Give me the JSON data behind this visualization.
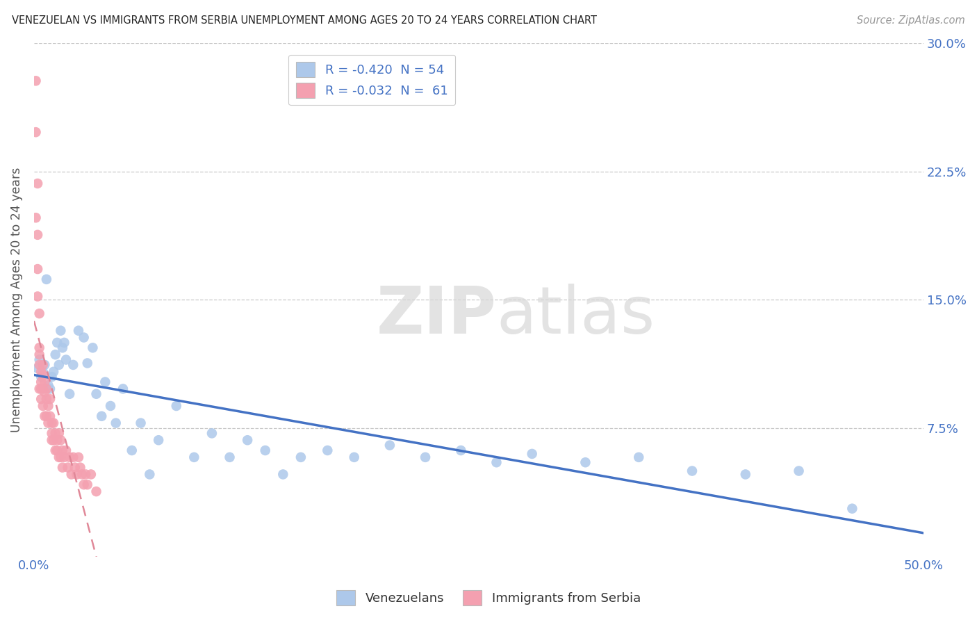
{
  "title": "VENEZUELAN VS IMMIGRANTS FROM SERBIA UNEMPLOYMENT AMONG AGES 20 TO 24 YEARS CORRELATION CHART",
  "source": "Source: ZipAtlas.com",
  "ylabel": "Unemployment Among Ages 20 to 24 years",
  "xlim": [
    0,
    0.5
  ],
  "ylim": [
    0,
    0.3
  ],
  "color_blue": "#adc8ea",
  "color_pink": "#f4a0b0",
  "line_blue": "#4472c4",
  "line_pink": "#e08898",
  "venezuelan_x": [
    0.002,
    0.003,
    0.004,
    0.005,
    0.006,
    0.007,
    0.008,
    0.009,
    0.01,
    0.011,
    0.012,
    0.013,
    0.014,
    0.015,
    0.016,
    0.017,
    0.018,
    0.02,
    0.022,
    0.025,
    0.028,
    0.03,
    0.033,
    0.035,
    0.038,
    0.04,
    0.043,
    0.046,
    0.05,
    0.055,
    0.06,
    0.065,
    0.07,
    0.08,
    0.09,
    0.1,
    0.11,
    0.12,
    0.13,
    0.14,
    0.15,
    0.165,
    0.18,
    0.2,
    0.22,
    0.24,
    0.26,
    0.28,
    0.31,
    0.34,
    0.37,
    0.4,
    0.43,
    0.46
  ],
  "venezuelan_y": [
    0.11,
    0.115,
    0.105,
    0.108,
    0.112,
    0.162,
    0.1,
    0.098,
    0.105,
    0.108,
    0.118,
    0.125,
    0.112,
    0.132,
    0.122,
    0.125,
    0.115,
    0.095,
    0.112,
    0.132,
    0.128,
    0.113,
    0.122,
    0.095,
    0.082,
    0.102,
    0.088,
    0.078,
    0.098,
    0.062,
    0.078,
    0.048,
    0.068,
    0.088,
    0.058,
    0.072,
    0.058,
    0.068,
    0.062,
    0.048,
    0.058,
    0.062,
    0.058,
    0.065,
    0.058,
    0.062,
    0.055,
    0.06,
    0.055,
    0.058,
    0.05,
    0.048,
    0.05,
    0.028
  ],
  "serbia_x": [
    0.001,
    0.001,
    0.001,
    0.002,
    0.002,
    0.002,
    0.002,
    0.003,
    0.003,
    0.003,
    0.003,
    0.003,
    0.004,
    0.004,
    0.004,
    0.004,
    0.005,
    0.005,
    0.005,
    0.005,
    0.006,
    0.006,
    0.006,
    0.007,
    0.007,
    0.007,
    0.008,
    0.008,
    0.009,
    0.009,
    0.01,
    0.01,
    0.01,
    0.011,
    0.011,
    0.012,
    0.012,
    0.013,
    0.013,
    0.014,
    0.014,
    0.015,
    0.015,
    0.016,
    0.016,
    0.017,
    0.018,
    0.019,
    0.02,
    0.021,
    0.022,
    0.023,
    0.024,
    0.025,
    0.026,
    0.027,
    0.028,
    0.029,
    0.03,
    0.032,
    0.035
  ],
  "serbia_y": [
    0.278,
    0.248,
    0.198,
    0.218,
    0.188,
    0.168,
    0.152,
    0.122,
    0.142,
    0.118,
    0.112,
    0.098,
    0.108,
    0.102,
    0.098,
    0.092,
    0.112,
    0.106,
    0.098,
    0.088,
    0.102,
    0.096,
    0.082,
    0.098,
    0.092,
    0.082,
    0.088,
    0.078,
    0.092,
    0.082,
    0.078,
    0.072,
    0.068,
    0.078,
    0.068,
    0.072,
    0.062,
    0.068,
    0.062,
    0.072,
    0.058,
    0.068,
    0.058,
    0.062,
    0.052,
    0.058,
    0.062,
    0.052,
    0.058,
    0.048,
    0.058,
    0.052,
    0.048,
    0.058,
    0.052,
    0.048,
    0.042,
    0.048,
    0.042,
    0.048,
    0.038
  ]
}
